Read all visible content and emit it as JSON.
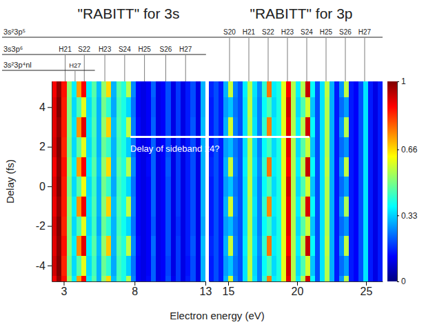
{
  "chart_data": {
    "type": "heatmap",
    "x_label": "Electron energy (eV)",
    "y_label": "Delay (fs)",
    "ylim": [
      -4.8,
      5.3
    ],
    "yticks": [
      -4,
      -2,
      0,
      2,
      4
    ],
    "y": [
      -5,
      -4,
      -3,
      -2,
      -1,
      0,
      1,
      2,
      3,
      4,
      5
    ],
    "colorbar": {
      "range": [
        0,
        1
      ],
      "ticks": [
        0,
        0.33,
        0.66,
        1
      ]
    },
    "state_labels": [
      {
        "label": "3s²3p⁵",
        "panel": 1,
        "peaks": [
          {
            "label": "S20",
            "energy": 15.1
          },
          {
            "label": "H21",
            "energy": 16.5
          },
          {
            "label": "S22",
            "energy": 17.9
          },
          {
            "label": "H23",
            "energy": 19.3
          },
          {
            "label": "S24",
            "energy": 20.7
          },
          {
            "label": "H25",
            "energy": 22.1
          },
          {
            "label": "S26",
            "energy": 23.5
          },
          {
            "label": "H27",
            "energy": 24.9
          }
        ]
      },
      {
        "label": "3s3p⁶",
        "panel": 0,
        "peaks": [
          {
            "label": "H21",
            "energy": 3.1
          },
          {
            "label": "S22",
            "energy": 4.45
          },
          {
            "label": "H23",
            "energy": 5.9
          },
          {
            "label": "S24",
            "energy": 7.3
          },
          {
            "label": "H25",
            "energy": 8.7
          },
          {
            "label": "S26",
            "energy": 10.2
          },
          {
            "label": "H27",
            "energy": 11.6
          }
        ]
      },
      {
        "label": "3s²3p⁴nl",
        "panel": 0,
        "peaks": [
          {
            "label": "H27",
            "energy": 3.8
          }
        ]
      }
    ],
    "annotation": {
      "text": "Delay of sideband 24?",
      "energy_start": 7.7,
      "energy_end": 20.9,
      "delay": 2.5
    },
    "panels": [
      {
        "title": "\"RABITT\" for 3s",
        "xlim": [
          2.15,
          13.0
        ],
        "xticks": [
          3,
          8,
          13
        ],
        "x": [
          2.325,
          2.675,
          3.025,
          3.375,
          3.725,
          4.075,
          4.425,
          4.775,
          5.125,
          5.475,
          5.825,
          6.175,
          6.525,
          6.875,
          7.225,
          7.575,
          7.925,
          8.275,
          8.625,
          8.975,
          9.325,
          9.675,
          10.025,
          10.375,
          10.725,
          11.075,
          11.425,
          11.775,
          12.125,
          12.475,
          12.825
        ],
        "z": [
          [
            0.88,
            0.98,
            0.86,
            0.52,
            0.36,
            0.72,
            0.88,
            0.36,
            0.46,
            0.3,
            0.52,
            0.66,
            0.31,
            0.45,
            0.4,
            0.55,
            0.25,
            0.12,
            0.1,
            0.13,
            0.22,
            0.1,
            0.12,
            0.2,
            0.11,
            0.18,
            0.1,
            0.15,
            0.2,
            0.1,
            0.3
          ],
          [
            0.92,
            1.0,
            0.84,
            0.48,
            0.34,
            0.46,
            0.6,
            0.34,
            0.44,
            0.3,
            0.48,
            0.42,
            0.29,
            0.44,
            0.4,
            0.33,
            0.24,
            0.12,
            0.1,
            0.12,
            0.22,
            0.1,
            0.12,
            0.19,
            0.1,
            0.18,
            0.1,
            0.14,
            0.2,
            0.1,
            0.3
          ],
          [
            0.9,
            0.99,
            0.86,
            0.5,
            0.36,
            0.74,
            0.9,
            0.36,
            0.46,
            0.31,
            0.52,
            0.68,
            0.3,
            0.46,
            0.41,
            0.56,
            0.26,
            0.13,
            0.1,
            0.12,
            0.23,
            0.1,
            0.12,
            0.2,
            0.1,
            0.18,
            0.1,
            0.15,
            0.21,
            0.1,
            0.31
          ],
          [
            0.91,
            1.0,
            0.84,
            0.5,
            0.34,
            0.45,
            0.6,
            0.34,
            0.44,
            0.29,
            0.48,
            0.42,
            0.3,
            0.44,
            0.39,
            0.34,
            0.24,
            0.12,
            0.1,
            0.12,
            0.21,
            0.1,
            0.12,
            0.2,
            0.1,
            0.17,
            0.1,
            0.15,
            0.2,
            0.1,
            0.29
          ],
          [
            0.89,
            0.98,
            0.85,
            0.51,
            0.36,
            0.73,
            0.89,
            0.35,
            0.45,
            0.3,
            0.51,
            0.67,
            0.31,
            0.45,
            0.4,
            0.56,
            0.25,
            0.12,
            0.1,
            0.12,
            0.22,
            0.1,
            0.12,
            0.2,
            0.1,
            0.18,
            0.1,
            0.15,
            0.2,
            0.1,
            0.3
          ],
          [
            0.9,
            1.0,
            0.85,
            0.49,
            0.34,
            0.46,
            0.61,
            0.34,
            0.44,
            0.3,
            0.49,
            0.43,
            0.29,
            0.44,
            0.4,
            0.34,
            0.24,
            0.12,
            0.1,
            0.12,
            0.22,
            0.1,
            0.12,
            0.2,
            0.1,
            0.18,
            0.1,
            0.15,
            0.2,
            0.1,
            0.3
          ],
          [
            0.88,
            0.99,
            0.86,
            0.51,
            0.36,
            0.72,
            0.88,
            0.36,
            0.46,
            0.31,
            0.52,
            0.66,
            0.3,
            0.46,
            0.41,
            0.55,
            0.26,
            0.12,
            0.1,
            0.13,
            0.22,
            0.1,
            0.12,
            0.21,
            0.1,
            0.18,
            0.1,
            0.15,
            0.2,
            0.1,
            0.3
          ],
          [
            0.91,
            1.0,
            0.84,
            0.49,
            0.34,
            0.47,
            0.6,
            0.34,
            0.44,
            0.3,
            0.48,
            0.43,
            0.3,
            0.44,
            0.4,
            0.33,
            0.24,
            0.12,
            0.1,
            0.12,
            0.22,
            0.1,
            0.12,
            0.2,
            0.1,
            0.18,
            0.1,
            0.15,
            0.2,
            0.1,
            0.3
          ],
          [
            0.9,
            0.98,
            0.85,
            0.5,
            0.35,
            0.73,
            0.9,
            0.35,
            0.45,
            0.3,
            0.52,
            0.67,
            0.31,
            0.45,
            0.4,
            0.56,
            0.25,
            0.13,
            0.1,
            0.12,
            0.22,
            0.1,
            0.12,
            0.2,
            0.1,
            0.18,
            0.1,
            0.15,
            0.21,
            0.1,
            0.31
          ],
          [
            0.9,
            1.0,
            0.85,
            0.5,
            0.34,
            0.45,
            0.6,
            0.34,
            0.44,
            0.3,
            0.49,
            0.42,
            0.29,
            0.44,
            0.4,
            0.34,
            0.24,
            0.12,
            0.1,
            0.12,
            0.21,
            0.1,
            0.12,
            0.2,
            0.1,
            0.18,
            0.1,
            0.15,
            0.2,
            0.1,
            0.3
          ],
          [
            0.88,
            0.98,
            0.86,
            0.51,
            0.36,
            0.72,
            0.88,
            0.36,
            0.46,
            0.31,
            0.52,
            0.66,
            0.3,
            0.46,
            0.41,
            0.55,
            0.26,
            0.12,
            0.1,
            0.12,
            0.22,
            0.1,
            0.12,
            0.2,
            0.1,
            0.18,
            0.1,
            0.15,
            0.2,
            0.1,
            0.3
          ]
        ]
      },
      {
        "title": "\"RABITT\" for 3p",
        "xlim": [
          13.6,
          26.2
        ],
        "xticks": [
          15,
          20,
          25
        ],
        "x": [
          13.775,
          14.125,
          14.475,
          14.825,
          15.175,
          15.525,
          15.875,
          16.225,
          16.575,
          16.925,
          17.275,
          17.625,
          17.975,
          18.325,
          18.675,
          19.025,
          19.375,
          19.725,
          20.075,
          20.425,
          20.775,
          21.125,
          21.475,
          21.825,
          22.175,
          22.525,
          22.875,
          23.225,
          23.575,
          23.925,
          24.275,
          24.625,
          24.975,
          25.325,
          25.675,
          26.025
        ],
        "z": [
          [
            0.15,
            0.2,
            0.15,
            0.3,
            0.58,
            0.25,
            0.2,
            0.35,
            0.55,
            0.35,
            0.25,
            0.42,
            0.75,
            0.36,
            0.4,
            0.6,
            0.9,
            0.55,
            0.36,
            0.55,
            0.92,
            0.38,
            0.2,
            0.35,
            0.55,
            0.3,
            0.15,
            0.27,
            0.55,
            0.15,
            0.12,
            0.2,
            0.35,
            0.15,
            0.1,
            0.15
          ],
          [
            0.15,
            0.2,
            0.15,
            0.28,
            0.32,
            0.24,
            0.2,
            0.35,
            0.56,
            0.34,
            0.25,
            0.38,
            0.45,
            0.34,
            0.4,
            0.6,
            0.92,
            0.55,
            0.34,
            0.45,
            0.58,
            0.32,
            0.2,
            0.35,
            0.55,
            0.3,
            0.15,
            0.23,
            0.28,
            0.15,
            0.12,
            0.2,
            0.35,
            0.15,
            0.1,
            0.15
          ],
          [
            0.16,
            0.2,
            0.15,
            0.3,
            0.57,
            0.25,
            0.2,
            0.36,
            0.55,
            0.35,
            0.26,
            0.42,
            0.76,
            0.36,
            0.4,
            0.6,
            0.88,
            0.55,
            0.36,
            0.55,
            0.93,
            0.38,
            0.2,
            0.35,
            0.56,
            0.3,
            0.15,
            0.27,
            0.56,
            0.15,
            0.12,
            0.2,
            0.35,
            0.15,
            0.1,
            0.15
          ],
          [
            0.15,
            0.2,
            0.15,
            0.28,
            0.31,
            0.24,
            0.2,
            0.35,
            0.55,
            0.34,
            0.25,
            0.38,
            0.44,
            0.34,
            0.4,
            0.6,
            0.9,
            0.55,
            0.34,
            0.46,
            0.57,
            0.32,
            0.2,
            0.35,
            0.55,
            0.3,
            0.15,
            0.23,
            0.27,
            0.15,
            0.12,
            0.2,
            0.35,
            0.15,
            0.1,
            0.15
          ],
          [
            0.15,
            0.2,
            0.15,
            0.3,
            0.58,
            0.25,
            0.2,
            0.35,
            0.55,
            0.35,
            0.25,
            0.42,
            0.74,
            0.36,
            0.4,
            0.6,
            0.9,
            0.55,
            0.36,
            0.55,
            0.91,
            0.38,
            0.2,
            0.35,
            0.55,
            0.3,
            0.15,
            0.27,
            0.54,
            0.15,
            0.12,
            0.2,
            0.35,
            0.15,
            0.1,
            0.15
          ],
          [
            0.15,
            0.2,
            0.15,
            0.28,
            0.32,
            0.24,
            0.2,
            0.35,
            0.56,
            0.34,
            0.25,
            0.38,
            0.45,
            0.34,
            0.4,
            0.6,
            0.92,
            0.55,
            0.34,
            0.45,
            0.58,
            0.32,
            0.2,
            0.35,
            0.55,
            0.3,
            0.15,
            0.23,
            0.28,
            0.15,
            0.12,
            0.2,
            0.35,
            0.15,
            0.1,
            0.15
          ],
          [
            0.16,
            0.2,
            0.15,
            0.3,
            0.57,
            0.25,
            0.2,
            0.36,
            0.55,
            0.35,
            0.26,
            0.42,
            0.76,
            0.36,
            0.4,
            0.6,
            0.88,
            0.55,
            0.36,
            0.55,
            0.93,
            0.38,
            0.2,
            0.35,
            0.56,
            0.3,
            0.15,
            0.27,
            0.56,
            0.15,
            0.12,
            0.2,
            0.35,
            0.15,
            0.1,
            0.15
          ],
          [
            0.15,
            0.2,
            0.15,
            0.28,
            0.31,
            0.24,
            0.2,
            0.35,
            0.55,
            0.34,
            0.25,
            0.38,
            0.44,
            0.34,
            0.4,
            0.6,
            0.9,
            0.55,
            0.34,
            0.46,
            0.57,
            0.32,
            0.2,
            0.35,
            0.55,
            0.3,
            0.15,
            0.23,
            0.27,
            0.15,
            0.12,
            0.2,
            0.35,
            0.15,
            0.1,
            0.15
          ],
          [
            0.15,
            0.2,
            0.15,
            0.3,
            0.58,
            0.25,
            0.2,
            0.35,
            0.55,
            0.35,
            0.25,
            0.42,
            0.75,
            0.36,
            0.4,
            0.6,
            0.9,
            0.55,
            0.36,
            0.55,
            0.92,
            0.38,
            0.2,
            0.35,
            0.55,
            0.3,
            0.15,
            0.27,
            0.55,
            0.15,
            0.12,
            0.2,
            0.35,
            0.15,
            0.1,
            0.15
          ],
          [
            0.15,
            0.2,
            0.15,
            0.28,
            0.32,
            0.24,
            0.2,
            0.35,
            0.56,
            0.34,
            0.25,
            0.38,
            0.45,
            0.34,
            0.4,
            0.6,
            0.92,
            0.55,
            0.34,
            0.45,
            0.58,
            0.32,
            0.2,
            0.35,
            0.55,
            0.3,
            0.15,
            0.23,
            0.28,
            0.15,
            0.12,
            0.2,
            0.35,
            0.15,
            0.1,
            0.15
          ],
          [
            0.16,
            0.2,
            0.15,
            0.3,
            0.57,
            0.25,
            0.2,
            0.36,
            0.55,
            0.35,
            0.26,
            0.42,
            0.76,
            0.36,
            0.4,
            0.6,
            0.88,
            0.55,
            0.36,
            0.55,
            0.93,
            0.38,
            0.2,
            0.35,
            0.56,
            0.3,
            0.15,
            0.27,
            0.56,
            0.15,
            0.12,
            0.2,
            0.35,
            0.15,
            0.1,
            0.15
          ]
        ]
      }
    ]
  }
}
